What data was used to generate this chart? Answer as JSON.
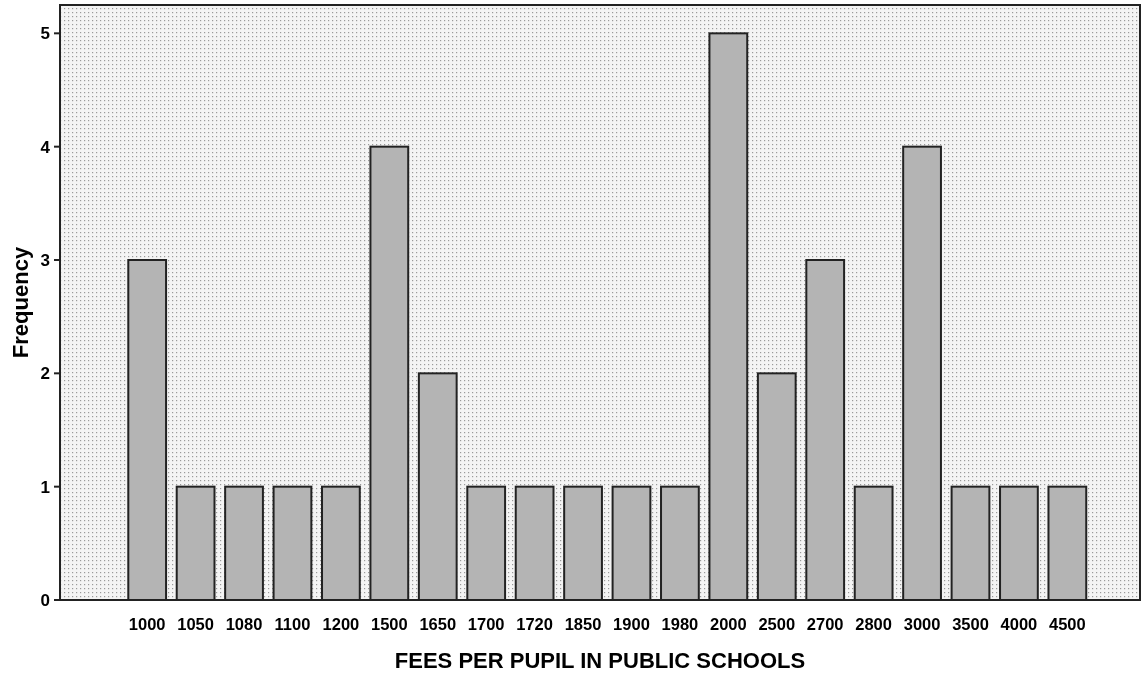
{
  "chart_data": {
    "type": "bar",
    "xlabel": "FEES PER PUPIL IN PUBLIC SCHOOLS",
    "ylabel": "Frequency",
    "categories": [
      "1000",
      "1050",
      "1080",
      "1100",
      "1200",
      "1500",
      "1650",
      "1700",
      "1720",
      "1850",
      "1900",
      "1980",
      "2000",
      "2500",
      "2700",
      "2800",
      "3000",
      "3500",
      "4000",
      "4500"
    ],
    "values": [
      3,
      1,
      1,
      1,
      1,
      4,
      2,
      1,
      1,
      1,
      1,
      1,
      5,
      2,
      3,
      1,
      4,
      1,
      1,
      1
    ],
    "color": "#b4b4b4",
    "ylim": [
      0,
      5.25
    ],
    "yticks": [
      0,
      1,
      2,
      3,
      4,
      5
    ],
    "grid": false
  }
}
